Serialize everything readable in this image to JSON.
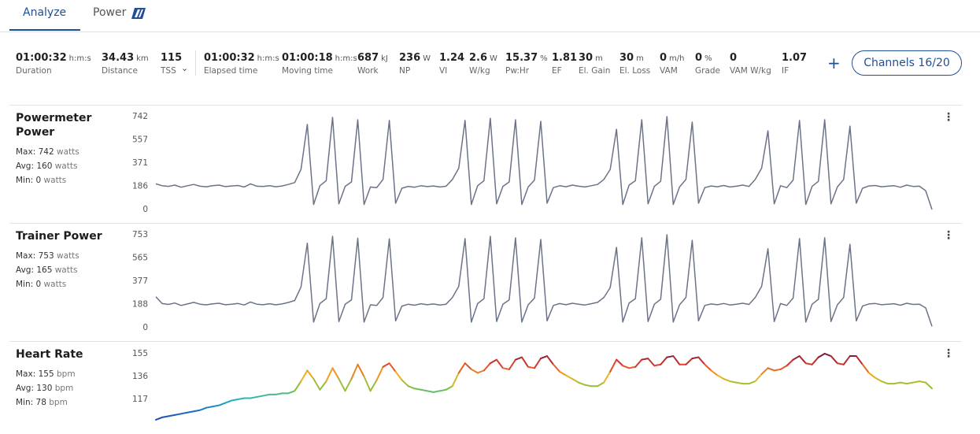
{
  "tabs": [
    "Analyze",
    "Power"
  ],
  "metrics": [
    {
      "value": "01:00:32",
      "unit": "h:m:s",
      "label": "Duration"
    },
    {
      "value": "34.43",
      "unit": "km",
      "label": "Distance"
    },
    {
      "value": "115",
      "label": "TSS"
    },
    {
      "value": "01:00:32",
      "unit": "h:m:s",
      "label": "Elapsed time"
    },
    {
      "value": "01:00:18",
      "unit": "h:m:s",
      "label": "Moving time"
    },
    {
      "value": "687",
      "unit": "kJ",
      "label": "Work"
    },
    {
      "value": "236",
      "unit": "W",
      "label": "NP"
    },
    {
      "value": "1.24",
      "label": "VI"
    },
    {
      "value": "2.6",
      "unit": "W",
      "label": "W/kg"
    },
    {
      "value": "15.37",
      "unit": "%",
      "label": "Pw:Hr"
    },
    {
      "value": "1.81",
      "label": "EF"
    },
    {
      "value": "30",
      "unit": "m",
      "label": "El. Gain"
    },
    {
      "value": "30",
      "unit": "m",
      "label": "El. Loss"
    },
    {
      "value": "0",
      "unit": "m/h",
      "label": "VAM"
    },
    {
      "value": "0",
      "unit": "%",
      "label": "Grade"
    },
    {
      "value": "0",
      "label": "VAM W/kg"
    },
    {
      "value": "1.07",
      "label": "IF"
    }
  ],
  "channels_button": "Channels 16/20",
  "chart_data": [
    {
      "type": "line",
      "title": "Powermeter Power",
      "color": "#6b7388",
      "stats": [
        {
          "label": "Max:",
          "value": 742,
          "unit": "watts"
        },
        {
          "label": "Avg:",
          "value": 160,
          "unit": "watts"
        },
        {
          "label": "Min:",
          "value": 0,
          "unit": "watts"
        }
      ],
      "ylim": [
        0,
        742
      ],
      "yticks": [
        0,
        186,
        371,
        557,
        742
      ],
      "values": [
        205,
        190,
        185,
        195,
        178,
        190,
        200,
        186,
        182,
        190,
        195,
        183,
        188,
        192,
        180,
        205,
        186,
        184,
        190,
        182,
        188,
        200,
        215,
        320,
        679,
        40,
        190,
        230,
        736,
        45,
        185,
        220,
        717,
        40,
        180,
        175,
        240,
        711,
        50,
        170,
        185,
        178,
        190,
        183,
        188,
        180,
        186,
        240,
        330,
        711,
        40,
        190,
        230,
        729,
        45,
        185,
        220,
        717,
        40,
        180,
        235,
        704,
        50,
        175,
        190,
        182,
        195,
        186,
        180,
        190,
        200,
        240,
        320,
        641,
        40,
        195,
        230,
        717,
        45,
        185,
        225,
        742,
        40,
        180,
        240,
        698,
        50,
        175,
        188,
        182,
        192,
        180,
        186,
        195,
        184,
        240,
        330,
        629,
        45,
        190,
        175,
        235,
        711,
        40,
        185,
        225,
        717,
        45,
        180,
        240,
        666,
        50,
        170,
        188,
        192,
        182,
        186,
        190,
        178,
        195,
        184,
        186,
        150,
        0
      ]
    },
    {
      "type": "line",
      "title": "Trainer Power",
      "color": "#6b7388",
      "stats": [
        {
          "label": "Max:",
          "value": 753,
          "unit": "watts"
        },
        {
          "label": "Avg:",
          "value": 165,
          "unit": "watts"
        },
        {
          "label": "Min:",
          "value": 0,
          "unit": "watts"
        }
      ],
      "ylim": [
        0,
        753
      ],
      "yticks": [
        0,
        188,
        377,
        565,
        753
      ],
      "values": [
        250,
        195,
        188,
        200,
        180,
        192,
        205,
        190,
        185,
        193,
        198,
        186,
        190,
        196,
        184,
        208,
        190,
        186,
        194,
        185,
        192,
        204,
        220,
        330,
        685,
        45,
        195,
        235,
        740,
        50,
        190,
        225,
        725,
        45,
        185,
        180,
        245,
        720,
        55,
        175,
        190,
        182,
        194,
        186,
        192,
        184,
        190,
        245,
        335,
        722,
        45,
        195,
        235,
        740,
        50,
        190,
        225,
        728,
        45,
        185,
        240,
        715,
        55,
        180,
        195,
        186,
        198,
        190,
        184,
        194,
        205,
        245,
        325,
        650,
        45,
        200,
        235,
        728,
        50,
        190,
        230,
        753,
        45,
        185,
        245,
        708,
        55,
        180,
        192,
        186,
        196,
        184,
        190,
        198,
        188,
        245,
        335,
        640,
        50,
        195,
        180,
        240,
        722,
        45,
        190,
        230,
        728,
        50,
        185,
        245,
        676,
        55,
        175,
        192,
        196,
        186,
        190,
        194,
        182,
        198,
        188,
        190,
        160,
        10
      ]
    },
    {
      "type": "line",
      "title": "Heart Rate",
      "colors": [
        "#1b3fae",
        "#1f6fc0",
        "#25b5c4",
        "#7cc242",
        "#f0b51d",
        "#e2442b",
        "#6e1141"
      ],
      "stats": [
        {
          "label": "Max:",
          "value": 155,
          "unit": "bpm"
        },
        {
          "label": "Avg:",
          "value": 130,
          "unit": "bpm"
        },
        {
          "label": "Min:",
          "value": 78,
          "unit": "bpm"
        }
      ],
      "ylim": [
        98,
        155
      ],
      "yticks": [
        117,
        136,
        155
      ],
      "values": [
        100,
        102,
        103,
        104,
        105,
        106,
        107,
        108,
        110,
        111,
        112,
        114,
        116,
        117,
        118,
        118,
        119,
        120,
        121,
        121,
        122,
        122,
        124,
        132,
        141,
        134,
        125,
        132,
        143,
        134,
        124,
        134,
        146,
        136,
        124,
        133,
        144,
        147,
        140,
        133,
        128,
        126,
        125,
        124,
        123,
        124,
        125,
        128,
        139,
        147,
        142,
        139,
        141,
        147,
        150,
        143,
        142,
        150,
        152,
        144,
        143,
        151,
        153,
        146,
        140,
        137,
        134,
        131,
        129,
        128,
        128,
        131,
        140,
        150,
        145,
        143,
        144,
        150,
        151,
        145,
        146,
        152,
        153,
        146,
        146,
        151,
        152,
        146,
        141,
        137,
        134,
        132,
        131,
        130,
        130,
        132,
        138,
        143,
        141,
        142,
        145,
        150,
        153,
        147,
        146,
        152,
        155,
        153,
        147,
        146,
        153,
        153,
        146,
        139,
        135,
        132,
        130,
        130,
        131,
        130,
        131,
        132,
        131,
        126
      ]
    }
  ]
}
